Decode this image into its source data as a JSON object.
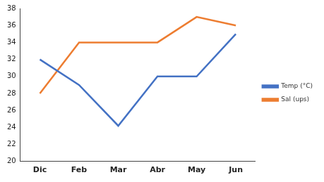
{
  "chart_data": {
    "type": "line",
    "categories": [
      "Dic",
      "Feb",
      "Mar",
      "Abr",
      "May",
      "Jun"
    ],
    "series": [
      {
        "name": "Temp (°C)",
        "color": "#4472c4",
        "values": [
          32,
          29,
          24.2,
          30,
          30,
          35
        ]
      },
      {
        "name": "Sal (ups)",
        "color": "#ed7d31",
        "values": [
          28,
          34,
          34,
          34,
          37,
          36
        ]
      }
    ],
    "ylim": [
      20,
      38
    ],
    "yticks": [
      20,
      22,
      24,
      26,
      28,
      30,
      32,
      34,
      36,
      38
    ],
    "grid": false,
    "legend": "right",
    "marker": "none"
  }
}
